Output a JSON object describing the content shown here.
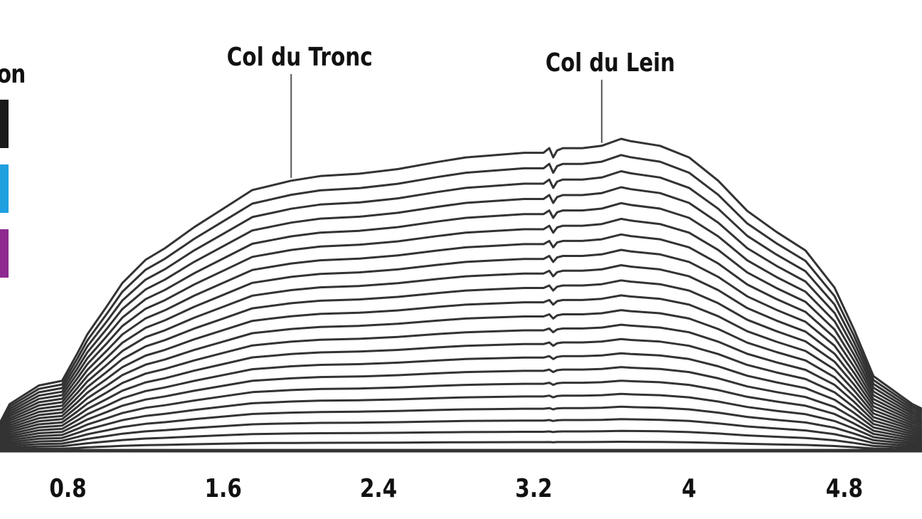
{
  "legend": {
    "title": "ron",
    "items": [
      {
        "color": "#1a1a1a"
      },
      {
        "color": "#1e9fe0"
      },
      {
        "color": "#8e2a8f"
      }
    ]
  },
  "chart_data": {
    "type": "line",
    "title": "",
    "xlabel": "",
    "ylabel": "",
    "x_ticks": [
      "0.8",
      "1.6",
      "2.4",
      "3.2",
      "4",
      "4.8"
    ],
    "xlim": [
      0.45,
      5.2
    ],
    "stack_count": 22,
    "line_color": "#333333",
    "annotations": [
      {
        "label": "Col du Tronc",
        "x": 1.95
      },
      {
        "label": "Col du Lein",
        "x": 3.55
      }
    ],
    "top_profile": {
      "x": [
        0.45,
        0.5,
        0.65,
        0.77,
        0.85,
        0.9,
        0.95,
        1.0,
        1.08,
        1.2,
        1.3,
        1.45,
        1.6,
        1.75,
        1.85,
        1.95,
        2.1,
        2.3,
        2.5,
        2.7,
        2.85,
        3.0,
        3.15,
        3.25,
        3.28,
        3.3,
        3.32,
        3.35,
        3.45,
        3.55,
        3.65,
        3.7,
        3.85,
        4.0,
        4.15,
        4.3,
        4.45,
        4.6,
        4.75,
        4.85,
        4.95,
        5.05,
        5.15,
        5.2
      ],
      "elevation": [
        0.12,
        0.2,
        0.28,
        0.3,
        0.42,
        0.5,
        0.56,
        0.62,
        0.72,
        0.82,
        0.87,
        0.96,
        1.04,
        1.12,
        1.14,
        1.16,
        1.18,
        1.19,
        1.21,
        1.24,
        1.26,
        1.27,
        1.28,
        1.28,
        1.3,
        1.26,
        1.29,
        1.3,
        1.3,
        1.31,
        1.34,
        1.33,
        1.31,
        1.26,
        1.16,
        1.03,
        0.94,
        0.86,
        0.7,
        0.52,
        0.32,
        0.26,
        0.2,
        0.18
      ]
    }
  }
}
